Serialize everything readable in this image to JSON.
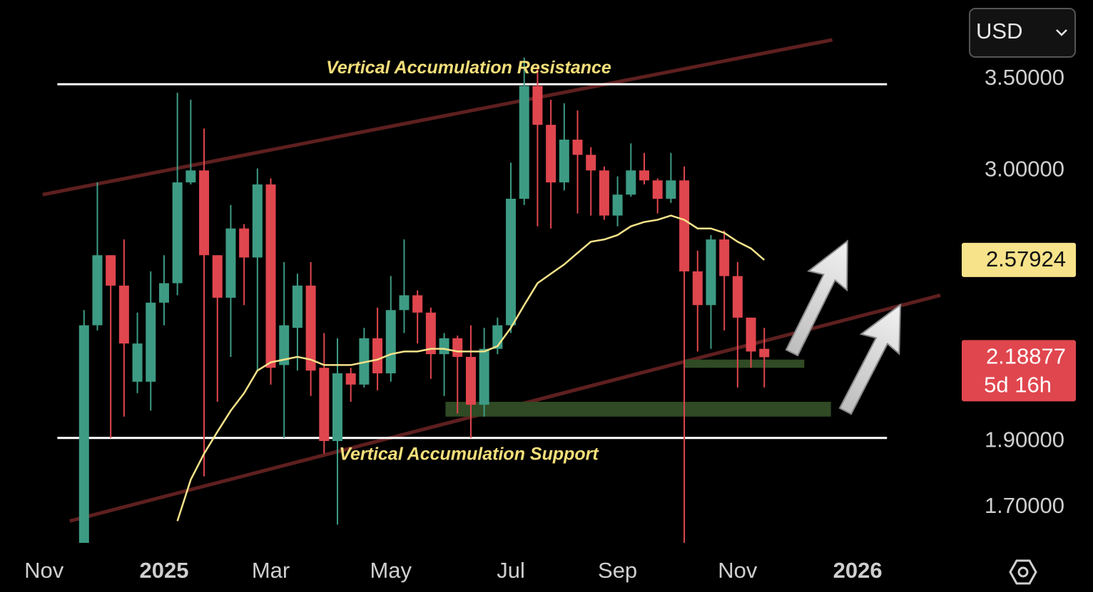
{
  "chart_data": {
    "type": "candlestick",
    "currency": "USD",
    "log_scale": true,
    "x": [
      0,
      1,
      2,
      3,
      4,
      5,
      6,
      7,
      8,
      9,
      10,
      11,
      12,
      13,
      14,
      15,
      16,
      17,
      18,
      19,
      20,
      21,
      22,
      23,
      24,
      25,
      26,
      27,
      28,
      29,
      30,
      31,
      32,
      33,
      34,
      35,
      36,
      37,
      38,
      39,
      40,
      41,
      42,
      43,
      44,
      45,
      46,
      47,
      48,
      49,
      50,
      51
    ],
    "xlim": [
      -6.3,
      65
    ],
    "xticks": [
      {
        "value": -3,
        "label": "Nov"
      },
      {
        "value": 6,
        "label": "2025"
      },
      {
        "value": 14,
        "label": "Mar"
      },
      {
        "value": 23,
        "label": "May"
      },
      {
        "value": 32,
        "label": "Jul"
      },
      {
        "value": 40,
        "label": "Sep"
      },
      {
        "value": 49,
        "label": "Nov"
      },
      {
        "value": 58,
        "label": "2026"
      }
    ],
    "ylim": [
      1.6,
      4.0
    ],
    "yticks": [
      {
        "value": 3.5,
        "label": "3.50000"
      },
      {
        "value": 3.0,
        "label": "3.00000"
      },
      {
        "value": 1.9,
        "label": "1.90000"
      },
      {
        "value": 1.7,
        "label": "1.70000"
      }
    ],
    "up_color": "#3d9b84",
    "down_color": "#e0464e",
    "open": [
      1.6,
      2.31,
      2.6,
      2.47,
      2.1,
      2.1,
      2.4,
      2.48,
      2.94,
      3.0,
      2.6,
      2.42,
      2.72,
      2.59,
      2.93,
      2.16,
      2.3,
      2.47,
      2.15,
      1.9,
      2.13,
      2.09,
      2.26,
      2.13,
      2.37,
      2.43,
      2.36,
      2.2,
      2.26,
      2.19,
      2.02,
      2.22,
      2.31,
      2.86,
      3.46,
      3.24,
      2.94,
      3.16,
      3.08,
      3.0,
      2.78,
      2.88,
      3.0,
      2.95,
      2.86,
      2.95,
      2.53,
      2.39,
      2.67,
      2.51,
      2.34,
      2.22
    ],
    "high": [
      2.37,
      2.94,
      2.6,
      2.67,
      2.36,
      2.53,
      2.6,
      3.42,
      3.38,
      3.22,
      2.6,
      2.83,
      2.74,
      3.01,
      2.96,
      2.57,
      2.52,
      2.57,
      2.28,
      2.26,
      2.15,
      2.3,
      2.38,
      2.51,
      2.67,
      2.45,
      2.38,
      2.28,
      2.27,
      2.31,
      2.3,
      2.34,
      3.04,
      3.63,
      3.58,
      3.38,
      3.36,
      3.32,
      3.12,
      3.02,
      2.97,
      3.14,
      3.09,
      2.96,
      3.09,
      3.02,
      2.62,
      2.69,
      2.71,
      2.57,
      2.34,
      2.3
    ],
    "low": [
      1.55,
      2.29,
      1.91,
      1.98,
      2.06,
      2.0,
      2.31,
      2.43,
      2.93,
      1.79,
      2.03,
      2.19,
      2.39,
      2.14,
      2.09,
      1.91,
      2.14,
      2.05,
      1.86,
      1.65,
      2.03,
      2.08,
      2.07,
      2.1,
      2.28,
      2.24,
      2.11,
      2.05,
      1.99,
      1.91,
      1.98,
      2.2,
      2.28,
      2.83,
      2.73,
      2.72,
      2.9,
      2.79,
      2.78,
      2.76,
      2.73,
      2.87,
      2.93,
      2.79,
      2.84,
      1.55,
      2.21,
      2.22,
      2.29,
      2.08,
      2.15,
      2.08
    ],
    "close": [
      2.31,
      2.6,
      2.47,
      2.24,
      2.24,
      2.4,
      2.48,
      2.94,
      3.0,
      2.6,
      2.42,
      2.72,
      2.59,
      2.93,
      2.15,
      2.31,
      2.47,
      2.14,
      1.9,
      2.13,
      2.09,
      2.26,
      2.13,
      2.37,
      2.43,
      2.36,
      2.2,
      2.26,
      2.19,
      2.02,
      2.22,
      2.31,
      2.86,
      3.46,
      3.24,
      2.94,
      3.16,
      3.08,
      3.0,
      2.78,
      2.88,
      3.0,
      2.95,
      2.86,
      2.95,
      2.53,
      2.39,
      2.67,
      2.51,
      2.34,
      2.21,
      2.18877
    ],
    "moving_average": {
      "color": "#f7e38a",
      "values": [
        null,
        null,
        null,
        null,
        null,
        null,
        null,
        1.66,
        1.78,
        1.86,
        1.93,
        2.0,
        2.06,
        2.14,
        2.17,
        2.18,
        2.19,
        2.18,
        2.16,
        2.16,
        2.16,
        2.17,
        2.18,
        2.2,
        2.21,
        2.21,
        2.22,
        2.22,
        2.21,
        2.21,
        2.21,
        2.23,
        2.3,
        2.39,
        2.48,
        2.52,
        2.56,
        2.61,
        2.66,
        2.67,
        2.69,
        2.73,
        2.75,
        2.76,
        2.78,
        2.76,
        2.72,
        2.72,
        2.7,
        2.66,
        2.63,
        2.57924
      ]
    },
    "countdown": "5d 16h",
    "levels": [
      {
        "label": "Vertical Accumulation Resistance",
        "value": 3.47,
        "x": [
          -2,
          60.2
        ],
        "color": "#ffffff"
      },
      {
        "label": "Vertical Accumulation Support",
        "value": 1.91,
        "x": [
          -2,
          60.2
        ],
        "color": "#ffffff"
      }
    ],
    "channel": {
      "color": "#6e2525",
      "lines": [
        {
          "x": [
            -3.1,
            56.1
          ],
          "y": [
            2.88,
            3.74
          ]
        },
        {
          "x": [
            -1.07,
            64.2
          ],
          "y": [
            1.66,
            2.43
          ]
        }
      ]
    },
    "zones": {
      "color": "#2f4a24",
      "areas": [
        {
          "x": [
            45,
            54
          ],
          "y": [
            2.15,
            2.18
          ]
        },
        {
          "x": [
            27.1,
            56
          ],
          "y": [
            1.98,
            2.03
          ]
        }
      ]
    }
  }
}
